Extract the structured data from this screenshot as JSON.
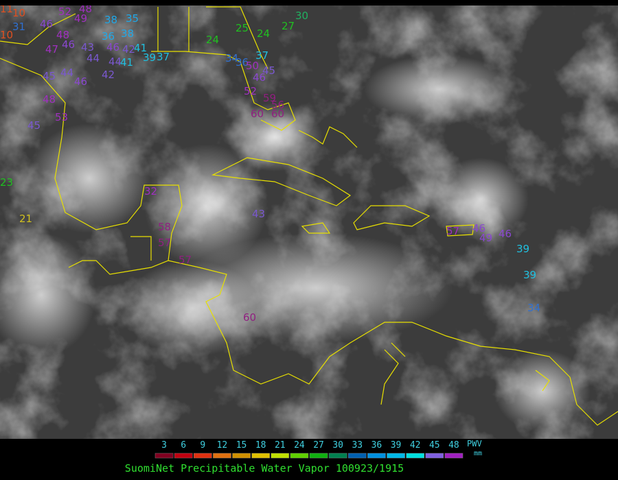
{
  "stations": [
    {
      "label": "11",
      "color": "#e05020"
    },
    {
      "label": "10",
      "color": "#e05020"
    },
    {
      "label": "10",
      "color": "#e05020"
    },
    {
      "label": "31",
      "color": "#3070d0"
    },
    {
      "label": "52",
      "color": "#a030c0"
    },
    {
      "label": "48",
      "color": "#a030c0"
    },
    {
      "label": "49",
      "color": "#a030c0"
    },
    {
      "label": "46",
      "color": "#8a48d0"
    },
    {
      "label": "38",
      "color": "#20a8e8"
    },
    {
      "label": "35",
      "color": "#20a8e8"
    },
    {
      "label": "36",
      "color": "#20a8e8"
    },
    {
      "label": "38",
      "color": "#20a8e8"
    },
    {
      "label": "48",
      "color": "#a030c0"
    },
    {
      "label": "47",
      "color": "#a030c0"
    },
    {
      "label": "46",
      "color": "#8a48d0"
    },
    {
      "label": "43",
      "color": "#7a58d0"
    },
    {
      "label": "46",
      "color": "#8a48d0"
    },
    {
      "label": "42",
      "color": "#7a58d0"
    },
    {
      "label": "41",
      "color": "#20c0e0"
    },
    {
      "label": "44",
      "color": "#7a58d0"
    },
    {
      "label": "44",
      "color": "#7a58d0"
    },
    {
      "label": "41",
      "color": "#20c0e0"
    },
    {
      "label": "39",
      "color": "#20c0e0"
    },
    {
      "label": "37",
      "color": "#20c0e0"
    },
    {
      "label": "44",
      "color": "#7a58d0"
    },
    {
      "label": "45",
      "color": "#7a58d0"
    },
    {
      "label": "46",
      "color": "#8a48d0"
    },
    {
      "label": "42",
      "color": "#7a58d0"
    },
    {
      "label": "48",
      "color": "#a030c0"
    },
    {
      "label": "53",
      "color": "#a030c0"
    },
    {
      "label": "45",
      "color": "#7a58d0"
    },
    {
      "label": "24",
      "color": "#20c020"
    },
    {
      "label": "25",
      "color": "#20c020"
    },
    {
      "label": "24",
      "color": "#20c020"
    },
    {
      "label": "27",
      "color": "#20c020"
    },
    {
      "label": "30",
      "color": "#20b060"
    },
    {
      "label": "34",
      "color": "#3070d0"
    },
    {
      "label": "36",
      "color": "#3070d0"
    },
    {
      "label": "37",
      "color": "#20c0e0"
    },
    {
      "label": "50",
      "color": "#a030c0"
    },
    {
      "label": "45",
      "color": "#7a58d0"
    },
    {
      "label": "46",
      "color": "#8a48d0"
    },
    {
      "label": "52",
      "color": "#a030c0"
    },
    {
      "label": "59",
      "color": "#902080"
    },
    {
      "label": "56",
      "color": "#902080"
    },
    {
      "label": "60",
      "color": "#902080"
    },
    {
      "label": "60",
      "color": "#902080"
    },
    {
      "label": "21",
      "color": "#d0c020"
    },
    {
      "label": "32",
      "color": "#a030c0"
    },
    {
      "label": "43",
      "color": "#7a58d0"
    },
    {
      "label": "58",
      "color": "#902080"
    },
    {
      "label": "57",
      "color": "#902080"
    },
    {
      "label": "57",
      "color": "#902080"
    },
    {
      "label": "60",
      "color": "#902080"
    },
    {
      "label": "57",
      "color": "#a030c0"
    },
    {
      "label": "46",
      "color": "#8a48d0"
    },
    {
      "label": "49",
      "color": "#8a48d0"
    },
    {
      "label": "46",
      "color": "#8a48d0"
    },
    {
      "label": "39",
      "color": "#20c0e0"
    },
    {
      "label": "39",
      "color": "#20c0e0"
    },
    {
      "label": "34",
      "color": "#3070d0"
    },
    {
      "label": "23",
      "color": "#20c020"
    }
  ],
  "colorbar": {
    "ticks": [
      3,
      6,
      9,
      12,
      15,
      18,
      21,
      24,
      27,
      30,
      33,
      36,
      39,
      42,
      45,
      48
    ],
    "colors": [
      "#800020",
      "#c00010",
      "#e03010",
      "#e07010",
      "#d09000",
      "#e0c000",
      "#c0e000",
      "#60d000",
      "#10b010",
      "#008050",
      "#0060b0",
      "#0090e0",
      "#00b8e8",
      "#00e0e0",
      "#8060e0",
      "#a020c0"
    ],
    "unit_name": "PWV",
    "unit": "mm"
  },
  "title": "SuomiNet Precipitable Water Vapor 100923/1915"
}
